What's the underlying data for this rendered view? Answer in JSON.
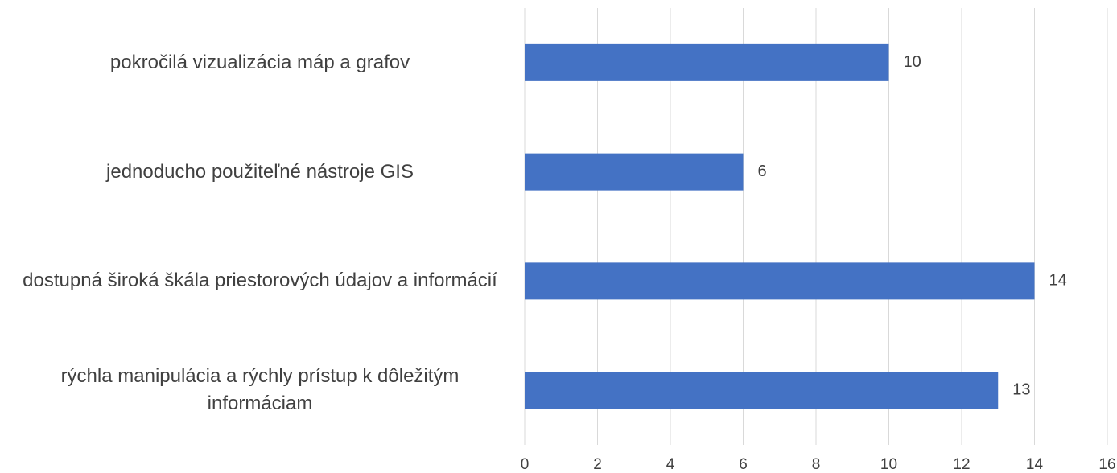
{
  "chart_data": {
    "type": "barh",
    "categories": [
      "pokročilá vizualizácia máp a grafov",
      "jednoducho použiteľné nástroje GIS",
      "dostupná široká škála priestorových údajov a informácií",
      "rýchla manipulácia a rýchly prístup k dôležitým informáciam"
    ],
    "values": [
      10,
      6,
      14,
      13
    ],
    "color": "#4472c4",
    "xlim": [
      0,
      16
    ],
    "xticks": [
      0,
      2,
      4,
      6,
      8,
      10,
      12,
      14,
      16
    ],
    "grid": true
  }
}
